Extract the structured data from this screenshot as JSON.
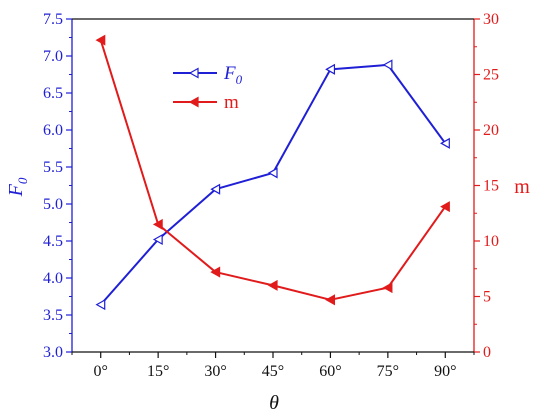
{
  "chart_data": {
    "type": "line",
    "categories": [
      "0°",
      "15°",
      "30°",
      "45°",
      "60°",
      "75°",
      "90°"
    ],
    "x_label": "θ",
    "left_axis": {
      "label_main": "F",
      "label_sub": "0",
      "range": [
        3.0,
        7.5
      ],
      "ticks": [
        "3.0",
        "3.5",
        "4.0",
        "4.5",
        "5.0",
        "5.5",
        "6.0",
        "6.5",
        "7.0",
        "7.5"
      ],
      "color": "#1f1fd6"
    },
    "right_axis": {
      "label": "m",
      "range": [
        0,
        30
      ],
      "ticks": [
        "0",
        "5",
        "10",
        "15",
        "20",
        "25",
        "30"
      ],
      "color": "#e11b1b"
    },
    "series": [
      {
        "legend_main": "F",
        "legend_sub": "0",
        "axis": "left",
        "color": "#1f1fd6",
        "marker": "open-left-triangle",
        "values": [
          3.64,
          4.52,
          5.2,
          5.42,
          6.82,
          6.88,
          5.82
        ]
      },
      {
        "legend_main": "m",
        "legend_sub": "",
        "axis": "right",
        "color": "#e11b1b",
        "marker": "filled-left-triangle",
        "values": [
          28.1,
          11.5,
          7.2,
          6.0,
          4.7,
          5.8,
          13.1
        ]
      }
    ]
  }
}
